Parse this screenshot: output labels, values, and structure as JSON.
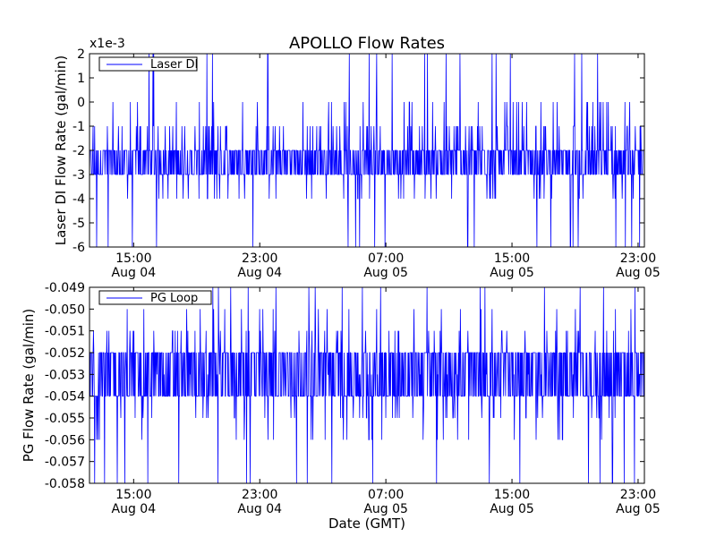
{
  "figure": {
    "title": "APOLLO Flow Rates",
    "xlabel": "Date (GMT)"
  },
  "chart_data": [
    {
      "type": "line",
      "title": "APOLLO Flow Rates",
      "xlabel": "",
      "ylabel": "Laser DI Flow Rate (gal/min)",
      "y_offset_text": "x1e-3",
      "ylim": [
        -6,
        2
      ],
      "yticks": [
        2,
        1,
        0,
        -1,
        -2,
        -3,
        -4,
        -5,
        -6
      ],
      "ytick_labels": [
        "2",
        "1",
        "0",
        "-1",
        "-2",
        "-3",
        "-4",
        "-5",
        "-6"
      ],
      "xlim_hours": [
        12.3,
        23.3
      ],
      "xticks": [
        {
          "pos": 15,
          "line1": "15:00",
          "line2": "Aug 04"
        },
        {
          "pos": 23,
          "line1": "23:00",
          "line2": "Aug 04"
        },
        {
          "pos": 31,
          "line1": "07:00",
          "line2": "Aug 05"
        },
        {
          "pos": 39,
          "line1": "15:00",
          "line2": "Aug 05"
        },
        {
          "pos": 47,
          "line1": "23:00",
          "line2": "Aug 05"
        }
      ],
      "x_range": [
        "Aug 04 12:15",
        "Aug 05 23:20"
      ],
      "legend": "top-left",
      "grid": false,
      "series": [
        {
          "name": "Laser DI",
          "color": "#0000ff",
          "typical_range": [
            -4,
            0
          ],
          "dominant_band": [
            -3,
            -2
          ],
          "values_units": "1e-3 gal/min",
          "observed_extremes": [
            -6,
            2
          ]
        }
      ]
    },
    {
      "type": "line",
      "xlabel": "Date (GMT)",
      "ylabel": "PG Flow Rate (gal/min)",
      "ylim": [
        -0.058,
        -0.049
      ],
      "ytick_labels": [
        "-0.049",
        "-0.050",
        "-0.051",
        "-0.052",
        "-0.053",
        "-0.054",
        "-0.055",
        "-0.056",
        "-0.057",
        "-0.058"
      ],
      "xticks": [
        {
          "pos": 15,
          "line1": "15:00",
          "line2": "Aug 04"
        },
        {
          "pos": 23,
          "line1": "23:00",
          "line2": "Aug 04"
        },
        {
          "pos": 31,
          "line1": "07:00",
          "line2": "Aug 05"
        },
        {
          "pos": 39,
          "line1": "15:00",
          "line2": "Aug 05"
        },
        {
          "pos": 47,
          "line1": "23:00",
          "line2": "Aug 05"
        }
      ],
      "legend": "top-left",
      "grid": false,
      "series": [
        {
          "name": "PG Loop",
          "color": "#0000ff",
          "typical_range": [
            -0.056,
            -0.05
          ],
          "dominant_band": [
            -0.054,
            -0.052
          ],
          "values_units": "gal/min",
          "observed_extremes": [
            -0.058,
            -0.049
          ]
        }
      ]
    }
  ]
}
